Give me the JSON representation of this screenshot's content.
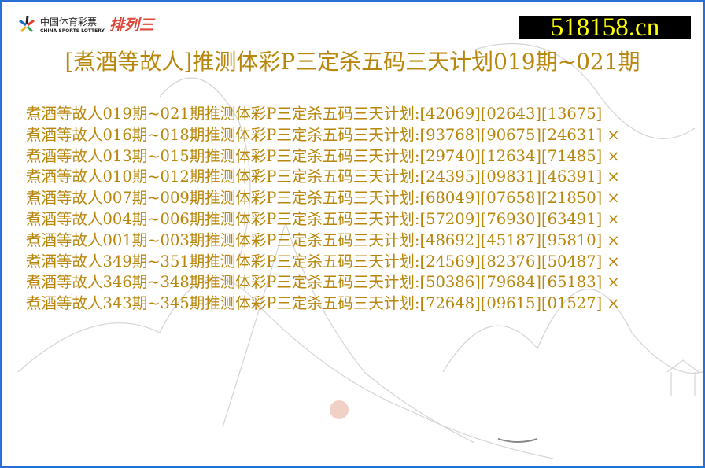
{
  "logo": {
    "cn": "中国体育彩票",
    "en": "CHINA SPORTS LOTTERY",
    "game": "排列三"
  },
  "site_badge": "518158.cn",
  "title": "[煮酒等故人]推测体彩P三定杀五码三天计划019期~021期",
  "colors": {
    "text": "#b8860b",
    "border": "#2a6fd6",
    "badge_bg": "#000000",
    "badge_text": "#ffff00"
  },
  "rows": [
    {
      "text": "煮酒等故人019期~021期推测体彩P三定杀五码三天计划:[42069][02643][13675]",
      "result": ""
    },
    {
      "text": "煮酒等故人016期~018期推测体彩P三定杀五码三天计划:[93768][90675][24631]",
      "result": "×"
    },
    {
      "text": "煮酒等故人013期~015期推测体彩P三定杀五码三天计划:[29740][12634][71485]",
      "result": "×"
    },
    {
      "text": "煮酒等故人010期~012期推测体彩P三定杀五码三天计划:[24395][09831][46391]",
      "result": "×"
    },
    {
      "text": "煮酒等故人007期~009期推测体彩P三定杀五码三天计划:[68049][07658][21850]",
      "result": "×"
    },
    {
      "text": "煮酒等故人004期~006期推测体彩P三定杀五码三天计划:[57209][76930][63491]",
      "result": "×"
    },
    {
      "text": "煮酒等故人001期~003期推测体彩P三定杀五码三天计划:[48692][45187][95810]",
      "result": "×"
    },
    {
      "text": "煮酒等故人349期~351期推测体彩P三定杀五码三天计划:[24569][82376][50487]",
      "result": "×"
    },
    {
      "text": "煮酒等故人346期~348期推测体彩P三定杀五码三天计划:[50386][79684][65183]",
      "result": "×"
    },
    {
      "text": "煮酒等故人343期~345期推测体彩P三定杀五码三天计划:[72648][09615][01527]",
      "result": "×"
    }
  ]
}
